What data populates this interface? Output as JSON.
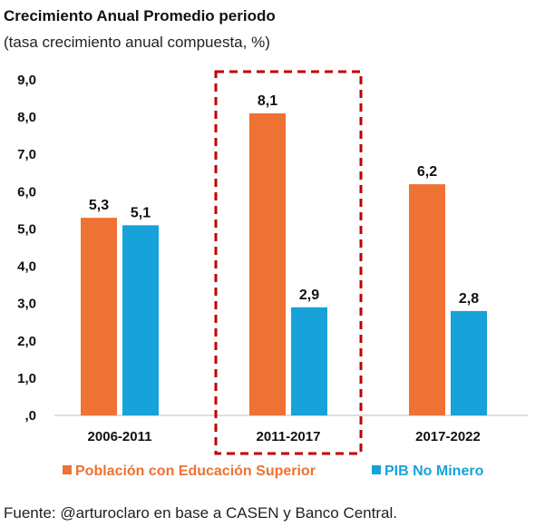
{
  "source_note": "Fuente: @arturoclaro en base a CASEN y Banco Central.",
  "chart_data": {
    "type": "bar",
    "title": "Crecimiento Anual Promedio periodo",
    "subtitle": "(tasa crecimiento anual compuesta, %)",
    "xlabel": "",
    "ylabel": "",
    "categories": [
      "2006-2011",
      "2011-2017",
      "2017-2022"
    ],
    "series": [
      {
        "name": "Población con Educación Superior",
        "color": "#ED7233",
        "values": [
          5.3,
          8.1,
          6.2
        ],
        "value_labels": [
          "5,3",
          "8,1",
          "6,2"
        ]
      },
      {
        "name": "PIB No Minero",
        "color": "#17A2D9",
        "values": [
          5.1,
          2.9,
          2.8
        ],
        "value_labels": [
          "5,1",
          "2,9",
          "2,8"
        ]
      }
    ],
    "ylim": [
      0,
      9
    ],
    "yticks": [
      0,
      1,
      2,
      3,
      4,
      5,
      6,
      7,
      8,
      9
    ],
    "ytick_labels": [
      ",0",
      "1,0",
      "2,0",
      "3,0",
      "4,0",
      "5,0",
      "6,0",
      "7,0",
      "8,0",
      "9,0"
    ],
    "grid": false,
    "legend_position": "bottom",
    "highlight": {
      "category": "2011-2017",
      "style": "dashed-box",
      "color": "#C00000"
    }
  }
}
